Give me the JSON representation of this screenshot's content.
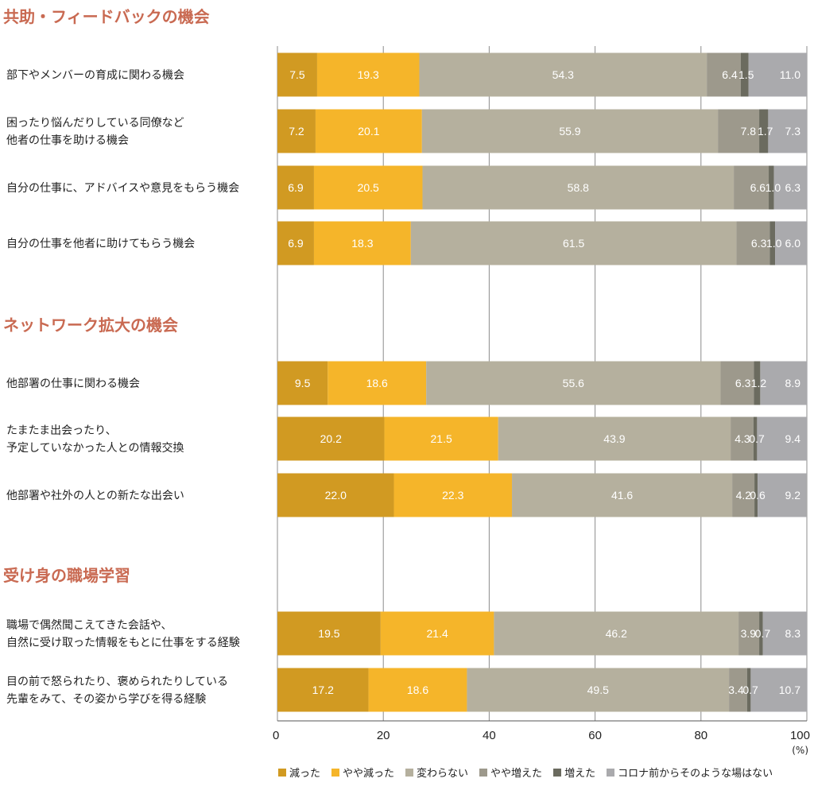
{
  "chart_data": {
    "type": "bar",
    "orientation": "horizontal",
    "stacked": true,
    "unit": "(%)",
    "xlim": [
      0,
      100
    ],
    "xticks": [
      "0",
      "20",
      "40",
      "60",
      "80",
      "100"
    ],
    "grid": true,
    "legend_position": "bottom",
    "series": [
      {
        "name": "減った",
        "color": "#d19a22"
      },
      {
        "name": "やや減った",
        "color": "#f5b52a"
      },
      {
        "name": "変わらない",
        "color": "#b5b09e"
      },
      {
        "name": "やや増えた",
        "color": "#9d998c"
      },
      {
        "name": "増えた",
        "color": "#6b6b5f"
      },
      {
        "name": "コロナ前からそのような場はない",
        "color": "#aaaaad"
      }
    ],
    "groups": [
      {
        "title": "共助・フィードバックの機会",
        "rows": [
          {
            "label": [
              "部下やメンバーの育成に関わる機会"
            ],
            "values": [
              7.5,
              19.3,
              54.3,
              6.4,
              1.5,
              11.0
            ],
            "display": [
              "7.5",
              "19.3",
              "54.3",
              "6.4",
              "1.5",
              "11.0"
            ]
          },
          {
            "label": [
              "困ったり悩んだりしている同僚など",
              "他者の仕事を助ける機会"
            ],
            "values": [
              7.2,
              20.1,
              55.9,
              7.8,
              1.7,
              7.3
            ],
            "display": [
              "7.2",
              "20.1",
              "55.9",
              "7.8",
              "1.7",
              "7.3"
            ]
          },
          {
            "label": [
              "自分の仕事に、アドバイスや意見をもらう機会"
            ],
            "values": [
              6.9,
              20.5,
              58.8,
              6.6,
              1.0,
              6.3
            ],
            "display": [
              "6.9",
              "20.5",
              "58.8",
              "6.6",
              "1.0",
              "6.3"
            ]
          },
          {
            "label": [
              "自分の仕事を他者に助けてもらう機会"
            ],
            "values": [
              6.9,
              18.3,
              61.5,
              6.3,
              1.0,
              6.0
            ],
            "display": [
              "6.9",
              "18.3",
              "61.5",
              "6.3",
              "1.0",
              "6.0"
            ]
          }
        ]
      },
      {
        "title": "ネットワーク拡大の機会",
        "rows": [
          {
            "label": [
              "他部署の仕事に関わる機会"
            ],
            "values": [
              9.5,
              18.6,
              55.6,
              6.3,
              1.2,
              8.9
            ],
            "display": [
              "9.5",
              "18.6",
              "55.6",
              "6.3",
              "1.2",
              "8.9"
            ]
          },
          {
            "label": [
              "たまたま出会ったり、",
              "予定していなかった人との情報交換"
            ],
            "values": [
              20.2,
              21.5,
              43.9,
              4.3,
              0.7,
              9.4
            ],
            "display": [
              "20.2",
              "21.5",
              "43.9",
              "4.3",
              "0.7",
              "9.4"
            ]
          },
          {
            "label": [
              "他部署や社外の人との新たな出会い"
            ],
            "values": [
              22.0,
              22.3,
              41.6,
              4.2,
              0.6,
              9.2
            ],
            "display": [
              "22.0",
              "22.3",
              "41.6",
              "4.2",
              "0.6",
              "9.2"
            ]
          }
        ]
      },
      {
        "title": "受け身の職場学習",
        "rows": [
          {
            "label": [
              "職場で偶然聞こえてきた会話や、",
              "自然に受け取った情報をもとに仕事をする経験"
            ],
            "values": [
              19.5,
              21.4,
              46.2,
              3.9,
              0.7,
              8.3
            ],
            "display": [
              "19.5",
              "21.4",
              "46.2",
              "3.9",
              "0.7",
              "8.3"
            ]
          },
          {
            "label": [
              "目の前で怒られたり、褒められたりしている",
              "先輩をみて、その姿から学びを得る経験"
            ],
            "values": [
              17.2,
              18.6,
              49.5,
              3.4,
              0.7,
              10.7
            ],
            "display": [
              "17.2",
              "18.6",
              "49.5",
              "3.4",
              "0.7",
              "10.7"
            ]
          }
        ]
      }
    ]
  }
}
